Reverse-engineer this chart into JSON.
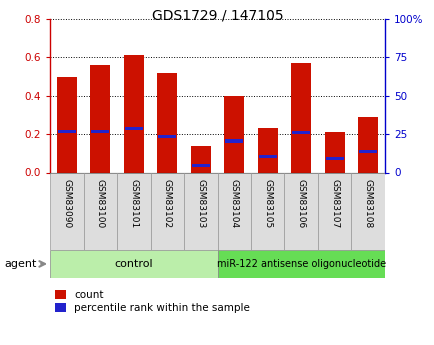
{
  "title": "GDS1729 / 147105",
  "samples": [
    "GSM83090",
    "GSM83100",
    "GSM83101",
    "GSM83102",
    "GSM83103",
    "GSM83104",
    "GSM83105",
    "GSM83106",
    "GSM83107",
    "GSM83108"
  ],
  "count_values": [
    0.5,
    0.56,
    0.61,
    0.52,
    0.14,
    0.4,
    0.23,
    0.57,
    0.21,
    0.29
  ],
  "percentile_values": [
    0.27,
    0.27,
    0.285,
    0.235,
    0.045,
    0.205,
    0.105,
    0.26,
    0.09,
    0.135
  ],
  "ylim_left": [
    0,
    0.8
  ],
  "ylim_right": [
    0,
    100
  ],
  "yticks_left": [
    0,
    0.2,
    0.4,
    0.6,
    0.8
  ],
  "yticks_right_vals": [
    0,
    25,
    50,
    75,
    100
  ],
  "yticks_right_labels": [
    "0",
    "25",
    "50",
    "75",
    "100%"
  ],
  "bar_color": "#cc1100",
  "percentile_color": "#2222cc",
  "bar_width": 0.6,
  "control_color": "#bbeeaa",
  "treatment_color": "#66dd55",
  "control_label": "control",
  "treatment_label": "miR-122 antisense oligonucleotide",
  "agent_label": "agent",
  "legend_count_label": "count",
  "legend_percentile_label": "percentile rank within the sample",
  "left_axis_color": "#cc0000",
  "right_axis_color": "#0000cc",
  "tick_label_color_left": "#cc0000",
  "tick_label_color_right": "#0000cc",
  "label_bg_color": "#dddddd",
  "title_fontsize": 10
}
